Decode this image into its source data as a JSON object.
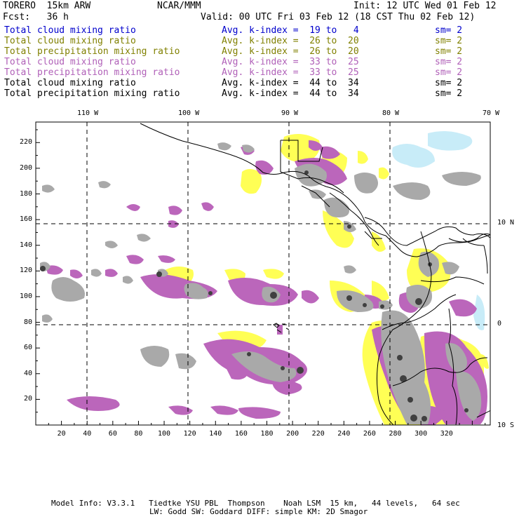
{
  "header": {
    "model": "TORERO  15km ARW",
    "org": "NCAR/MMM",
    "init": "Init: 12 UTC Wed 01 Feb 12",
    "fcst": "Fcst:   36 h",
    "valid": "Valid: 00 UTC Fri 03 Feb 12 (18 CST Thu 02 Feb 12)"
  },
  "legend": [
    {
      "name": "Total cloud mixing ratio",
      "kindex": "Avg. k-index =  19 to   4",
      "sm": "sm= 2",
      "color": "#0000cc"
    },
    {
      "name": "Total cloud mixing ratio",
      "kindex": "Avg. k-index =  26 to  20",
      "sm": "sm= 2",
      "color": "#808000"
    },
    {
      "name": "Total precipitation mixing ratio",
      "kindex": "Avg. k-index =  26 to  20",
      "sm": "sm= 2",
      "color": "#808000"
    },
    {
      "name": "Total cloud mixing ratio",
      "kindex": "Avg. k-index =  33 to  25",
      "sm": "sm= 2",
      "color": "#b060b8"
    },
    {
      "name": "Total precipitation mixing ratio",
      "kindex": "Avg. k-index =  33 to  25",
      "sm": "sm= 2",
      "color": "#b060b8"
    },
    {
      "name": "Total cloud mixing ratio",
      "kindex": "Avg. k-index =  44 to  34",
      "sm": "sm= 2",
      "color": "#000000"
    },
    {
      "name": "Total precipitation mixing ratio",
      "kindex": "Avg. k-index =  44 to  34",
      "sm": "sm= 2",
      "color": "#000000"
    }
  ],
  "map": {
    "top_lon_labels": [
      "110 W",
      "100 W",
      "90 W",
      "80 W",
      "70 W"
    ],
    "right_lat_labels": [
      "10 N",
      "0",
      "10 S"
    ],
    "left_ticks": [
      "220",
      "200",
      "180",
      "160",
      "140",
      "120",
      "100",
      "80",
      "60",
      "40",
      "20"
    ],
    "bottom_ticks": [
      "20",
      "40",
      "60",
      "80",
      "100",
      "120",
      "140",
      "160",
      "180",
      "200",
      "220",
      "240",
      "260",
      "280",
      "300",
      "320"
    ],
    "colors": {
      "cloud_light": "#c8ecf8",
      "yellow": "#ffff55",
      "purple": "#bb66bb",
      "grey": "#a9a9a9",
      "dark": "#404040"
    }
  },
  "footer": {
    "line1": "Model Info: V3.3.1   Tiedtke YSU PBL  Thompson    Noah LSM  15 km,   44 levels,   64 sec",
    "line2": "LW: Godd SW: Goddard DIFF: simple KM: 2D Smagor"
  }
}
